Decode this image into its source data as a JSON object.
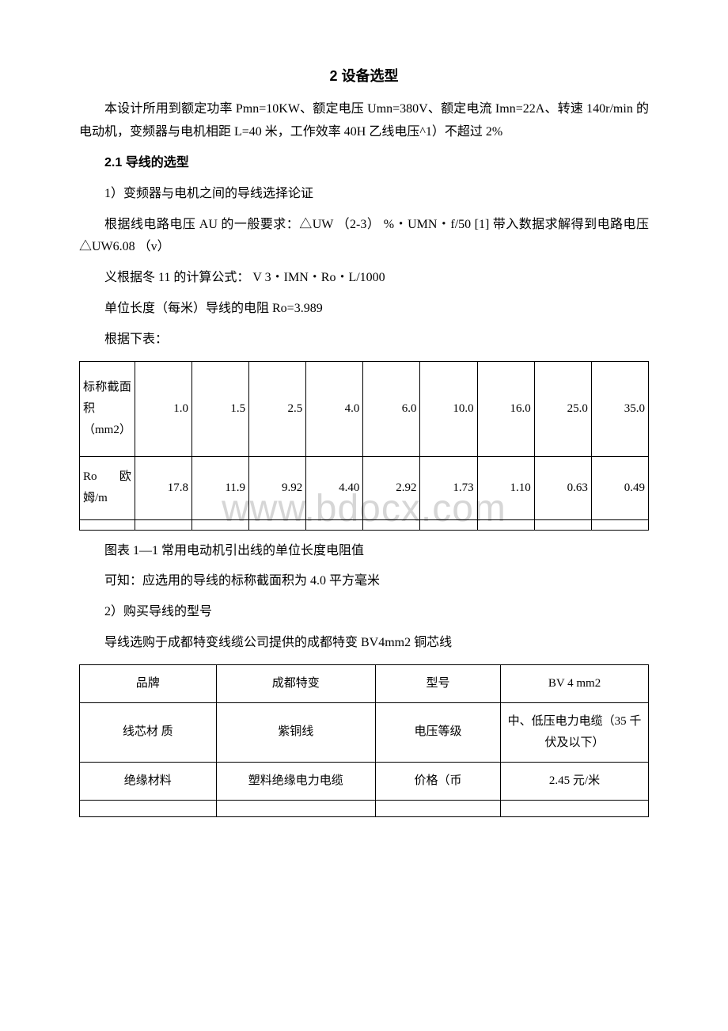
{
  "watermark": "www.bdocx.com",
  "title": "2 设备选型",
  "para1": "本设计所用到额定功率 Pmn=10KW、额定电压 Umn=380V、额定电流 Imn=22A、转速 140r/min 的电动机，变频器与电机相距 L=40 米，工作效率 40H 乙线电压^1）不超过 2%",
  "section21": "2.1 导线的选型",
  "para2": "1）变频器与电机之间的导线选择论证",
  "para3": "根据线电路电压 AU 的一般要求：△UW （2-3） %・UMN・f/50 [1] 带入数据求解得到电路电压△UW6.08 （v）",
  "para4": "义根据冬 11 的计算公式： V 3・IMN・Ro・L/1000",
  "para5": "单位长度（每米）导线的电阻 Ro=3.989",
  "para6": "根据下表：",
  "table1": {
    "header_label": "标称截面积（mm2）",
    "header_values": [
      "1.0",
      "1.5",
      "2.5",
      "4.0",
      "6.0",
      "10.0",
      "16.0",
      "25.0",
      "35.0"
    ],
    "row_label": "Ro 欧姆/m",
    "row_values": [
      "17.8",
      "11.9",
      "9.92",
      "4.40",
      "2.92",
      "1.73",
      "1.10",
      "0.63",
      "0.49"
    ]
  },
  "caption1": "图表 1—1 常用电动机引出线的单位长度电阻值",
  "para7": "可知：应选用的导线的标称截面积为 4.0 平方毫米",
  "para8": "2）购买导线的型号",
  "para9": "导线选购于成都特变线缆公司提供的成都特变 BV4mm2 铜芯线",
  "table2": {
    "rows": [
      {
        "c1": "品牌",
        "c2": "成都特变",
        "c3": "型号",
        "c4": "BV 4 mm2"
      },
      {
        "c1": "线芯材 质",
        "c2": "紫铜线",
        "c3": "电压等级",
        "c4": "中、低压电力电缆（35 千伏及以下）"
      },
      {
        "c1": "绝缘材料",
        "c2": "塑料绝缘电力电缆",
        "c3": "价格（币",
        "c4": "2.45 元/米"
      }
    ]
  }
}
